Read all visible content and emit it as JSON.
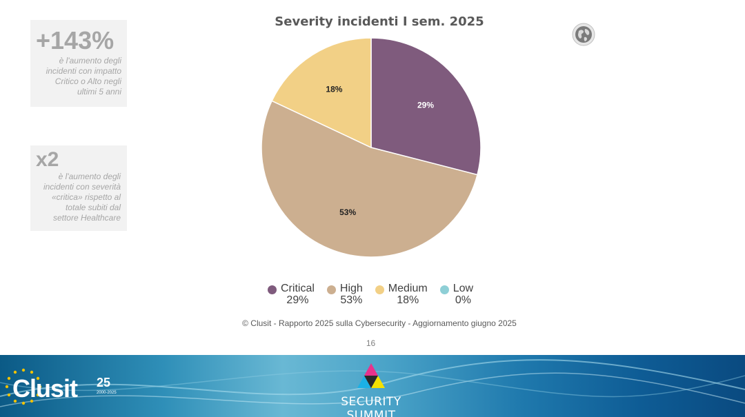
{
  "callouts": [
    {
      "big": "+143%",
      "lines": [
        "è l'aumento degli",
        "incidenti con impatto",
        "Critico o Alto negli",
        "ultimi 5 anni"
      ]
    },
    {
      "big": "x2",
      "lines": [
        "è l'aumento degli",
        "incidenti con severità",
        "«critica» rispetto al",
        "totale subiti dal",
        "settore Healthcare"
      ]
    }
  ],
  "chart_data": {
    "type": "pie",
    "title": "Severity incidenti I sem. 2025",
    "slices": [
      {
        "name": "Critical",
        "value": 29,
        "label": "29%",
        "color": "#7f5b7d",
        "label_color": "#ffffff"
      },
      {
        "name": "High",
        "value": 53,
        "label": "53%",
        "color": "#ccaf90",
        "label_color": "#222222"
      },
      {
        "name": "Medium",
        "value": 18,
        "label": "18%",
        "color": "#f2d086",
        "label_color": "#222222"
      },
      {
        "name": "Low",
        "value": 0,
        "label": "0%",
        "color": "#8ecfd6",
        "label_color": "#222222"
      }
    ],
    "legend_position": "bottom"
  },
  "source_note": "© Clusit - Rapporto 2025 sulla Cybersecurity - Aggiornamento giugno 2025",
  "page_number": "16",
  "footer": {
    "clusit_text": "Clusit",
    "clusit_anniversary": "25",
    "clusit_years": "2000-2025",
    "summit_text": "SECURITY SUMMIT"
  },
  "icons": {
    "globe": "globe-icon"
  }
}
